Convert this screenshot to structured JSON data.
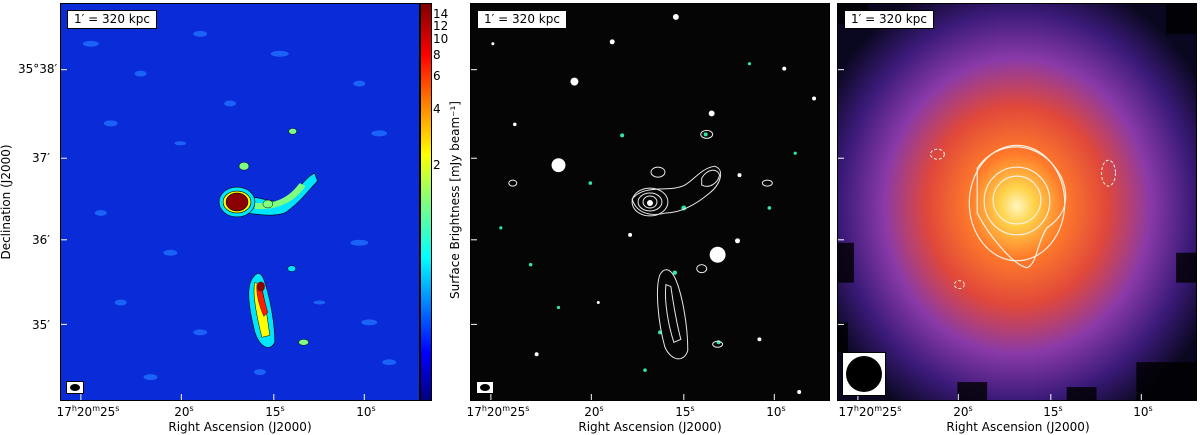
{
  "scale_label": "1′ = 320 kpc",
  "y_axis": {
    "label": "Declination (J2000)",
    "ticks": [
      "35°38′",
      "37′",
      "36′",
      "35′"
    ]
  },
  "x_axis": {
    "label": "Right Ascension (J2000)",
    "tick_h": "17",
    "tick_m": "20",
    "tick_s": "25",
    "ticks": [
      "20",
      "15",
      "10"
    ],
    "sec_sup": "s"
  },
  "colorbar": {
    "label": "Surface Brightness [mJy beam⁻¹]",
    "ticks": [
      "14",
      "12",
      "10",
      "8",
      "6",
      "4",
      "2"
    ],
    "colors": [
      "#00007f",
      "#0000ff",
      "#00ffff",
      "#ffff00",
      "#ff0000",
      "#7f0000"
    ]
  },
  "panels": [
    {
      "name": "radio-map",
      "background": "#0a2bd8"
    },
    {
      "name": "optical-overlay",
      "background": "#050505"
    },
    {
      "name": "xray-overlay",
      "background": "#2b0a58"
    }
  ]
}
